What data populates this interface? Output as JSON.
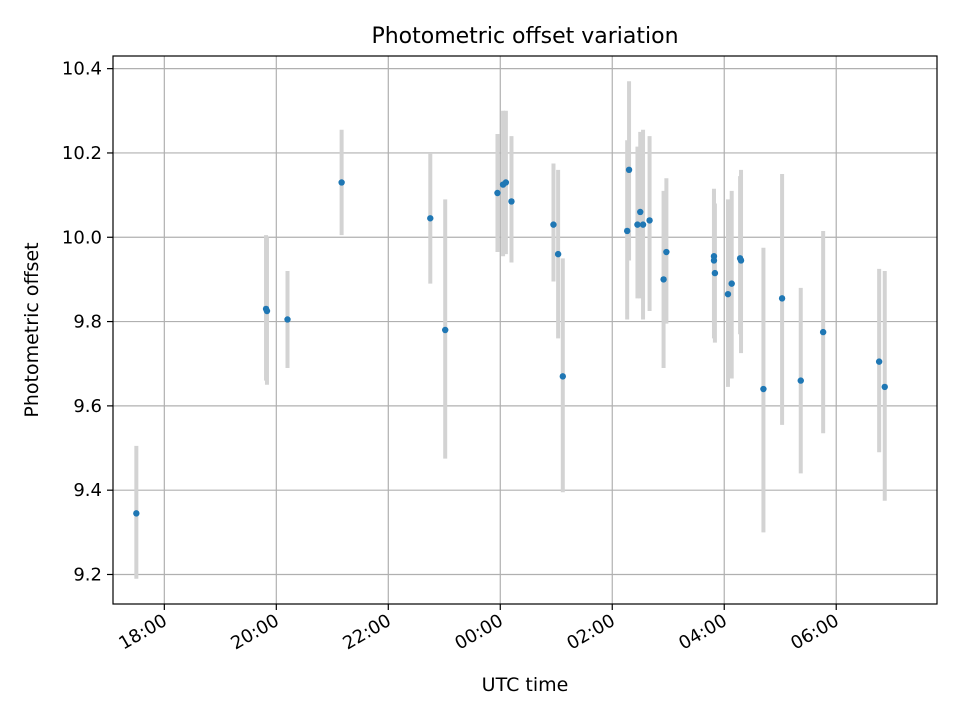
{
  "chart_data": {
    "type": "scatter",
    "title": "Photometric offset variation",
    "xlabel": "UTC time",
    "ylabel": "Photometric offset",
    "x_axis": "time",
    "x_ticks": [
      "18:00",
      "20:00",
      "22:00",
      "00:00",
      "02:00",
      "04:00",
      "06:00"
    ],
    "y_ticks": [
      "9.2",
      "9.4",
      "9.6",
      "9.8",
      "10.0",
      "10.2",
      "10.4"
    ],
    "xlim": [
      "17:05",
      "07:48"
    ],
    "ylim": [
      9.13,
      10.43
    ],
    "grid": true,
    "point_color": "#1f77b4",
    "error_bar_color": "#d3d3d3",
    "points": [
      {
        "x": "17:30",
        "y": 9.345,
        "lo": 9.19,
        "hi": 9.505
      },
      {
        "x": "19:49",
        "y": 9.83,
        "lo": 9.66,
        "hi": 10.005
      },
      {
        "x": "19:50",
        "y": 9.825,
        "lo": 9.65,
        "hi": 10.0
      },
      {
        "x": "20:12",
        "y": 9.805,
        "lo": 9.69,
        "hi": 9.92
      },
      {
        "x": "21:10",
        "y": 10.13,
        "lo": 10.005,
        "hi": 10.255
      },
      {
        "x": "22:45",
        "y": 10.045,
        "lo": 9.89,
        "hi": 10.2
      },
      {
        "x": "23:01",
        "y": 9.78,
        "lo": 9.475,
        "hi": 10.09
      },
      {
        "x": "23:57",
        "y": 10.105,
        "lo": 9.965,
        "hi": 10.245
      },
      {
        "x": "00:03",
        "y": 10.125,
        "lo": 9.955,
        "hi": 10.3
      },
      {
        "x": "00:06",
        "y": 10.13,
        "lo": 9.96,
        "hi": 10.3
      },
      {
        "x": "00:12",
        "y": 10.085,
        "lo": 9.94,
        "hi": 10.24
      },
      {
        "x": "00:57",
        "y": 10.03,
        "lo": 9.895,
        "hi": 10.175
      },
      {
        "x": "01:02",
        "y": 9.96,
        "lo": 9.76,
        "hi": 10.16
      },
      {
        "x": "01:07",
        "y": 9.67,
        "lo": 9.395,
        "hi": 9.95
      },
      {
        "x": "02:16",
        "y": 10.015,
        "lo": 9.805,
        "hi": 10.23
      },
      {
        "x": "02:18",
        "y": 10.16,
        "lo": 9.945,
        "hi": 10.37
      },
      {
        "x": "02:27",
        "y": 10.03,
        "lo": 9.855,
        "hi": 10.215
      },
      {
        "x": "02:30",
        "y": 10.06,
        "lo": 9.855,
        "hi": 10.25
      },
      {
        "x": "02:33",
        "y": 10.03,
        "lo": 9.805,
        "hi": 10.255
      },
      {
        "x": "02:40",
        "y": 10.04,
        "lo": 9.825,
        "hi": 10.24
      },
      {
        "x": "02:55",
        "y": 9.9,
        "lo": 9.69,
        "hi": 10.11
      },
      {
        "x": "02:58",
        "y": 9.965,
        "lo": 9.795,
        "hi": 10.14
      },
      {
        "x": "03:49",
        "y": 9.955,
        "lo": 9.8,
        "hi": 10.115
      },
      {
        "x": "03:49",
        "y": 9.945,
        "lo": 9.76,
        "hi": 10.11
      },
      {
        "x": "03:50",
        "y": 9.915,
        "lo": 9.75,
        "hi": 10.08
      },
      {
        "x": "04:04",
        "y": 9.865,
        "lo": 9.645,
        "hi": 10.09
      },
      {
        "x": "04:08",
        "y": 9.89,
        "lo": 9.665,
        "hi": 10.11
      },
      {
        "x": "04:17",
        "y": 9.95,
        "lo": 9.77,
        "hi": 10.145
      },
      {
        "x": "04:18",
        "y": 9.945,
        "lo": 9.725,
        "hi": 10.16
      },
      {
        "x": "04:42",
        "y": 9.64,
        "lo": 9.3,
        "hi": 9.975
      },
      {
        "x": "05:02",
        "y": 9.855,
        "lo": 9.555,
        "hi": 10.15
      },
      {
        "x": "05:22",
        "y": 9.66,
        "lo": 9.44,
        "hi": 9.88
      },
      {
        "x": "05:46",
        "y": 9.775,
        "lo": 9.535,
        "hi": 10.015
      },
      {
        "x": "06:46",
        "y": 9.705,
        "lo": 9.49,
        "hi": 9.925
      },
      {
        "x": "06:52",
        "y": 9.645,
        "lo": 9.375,
        "hi": 9.92
      }
    ]
  }
}
